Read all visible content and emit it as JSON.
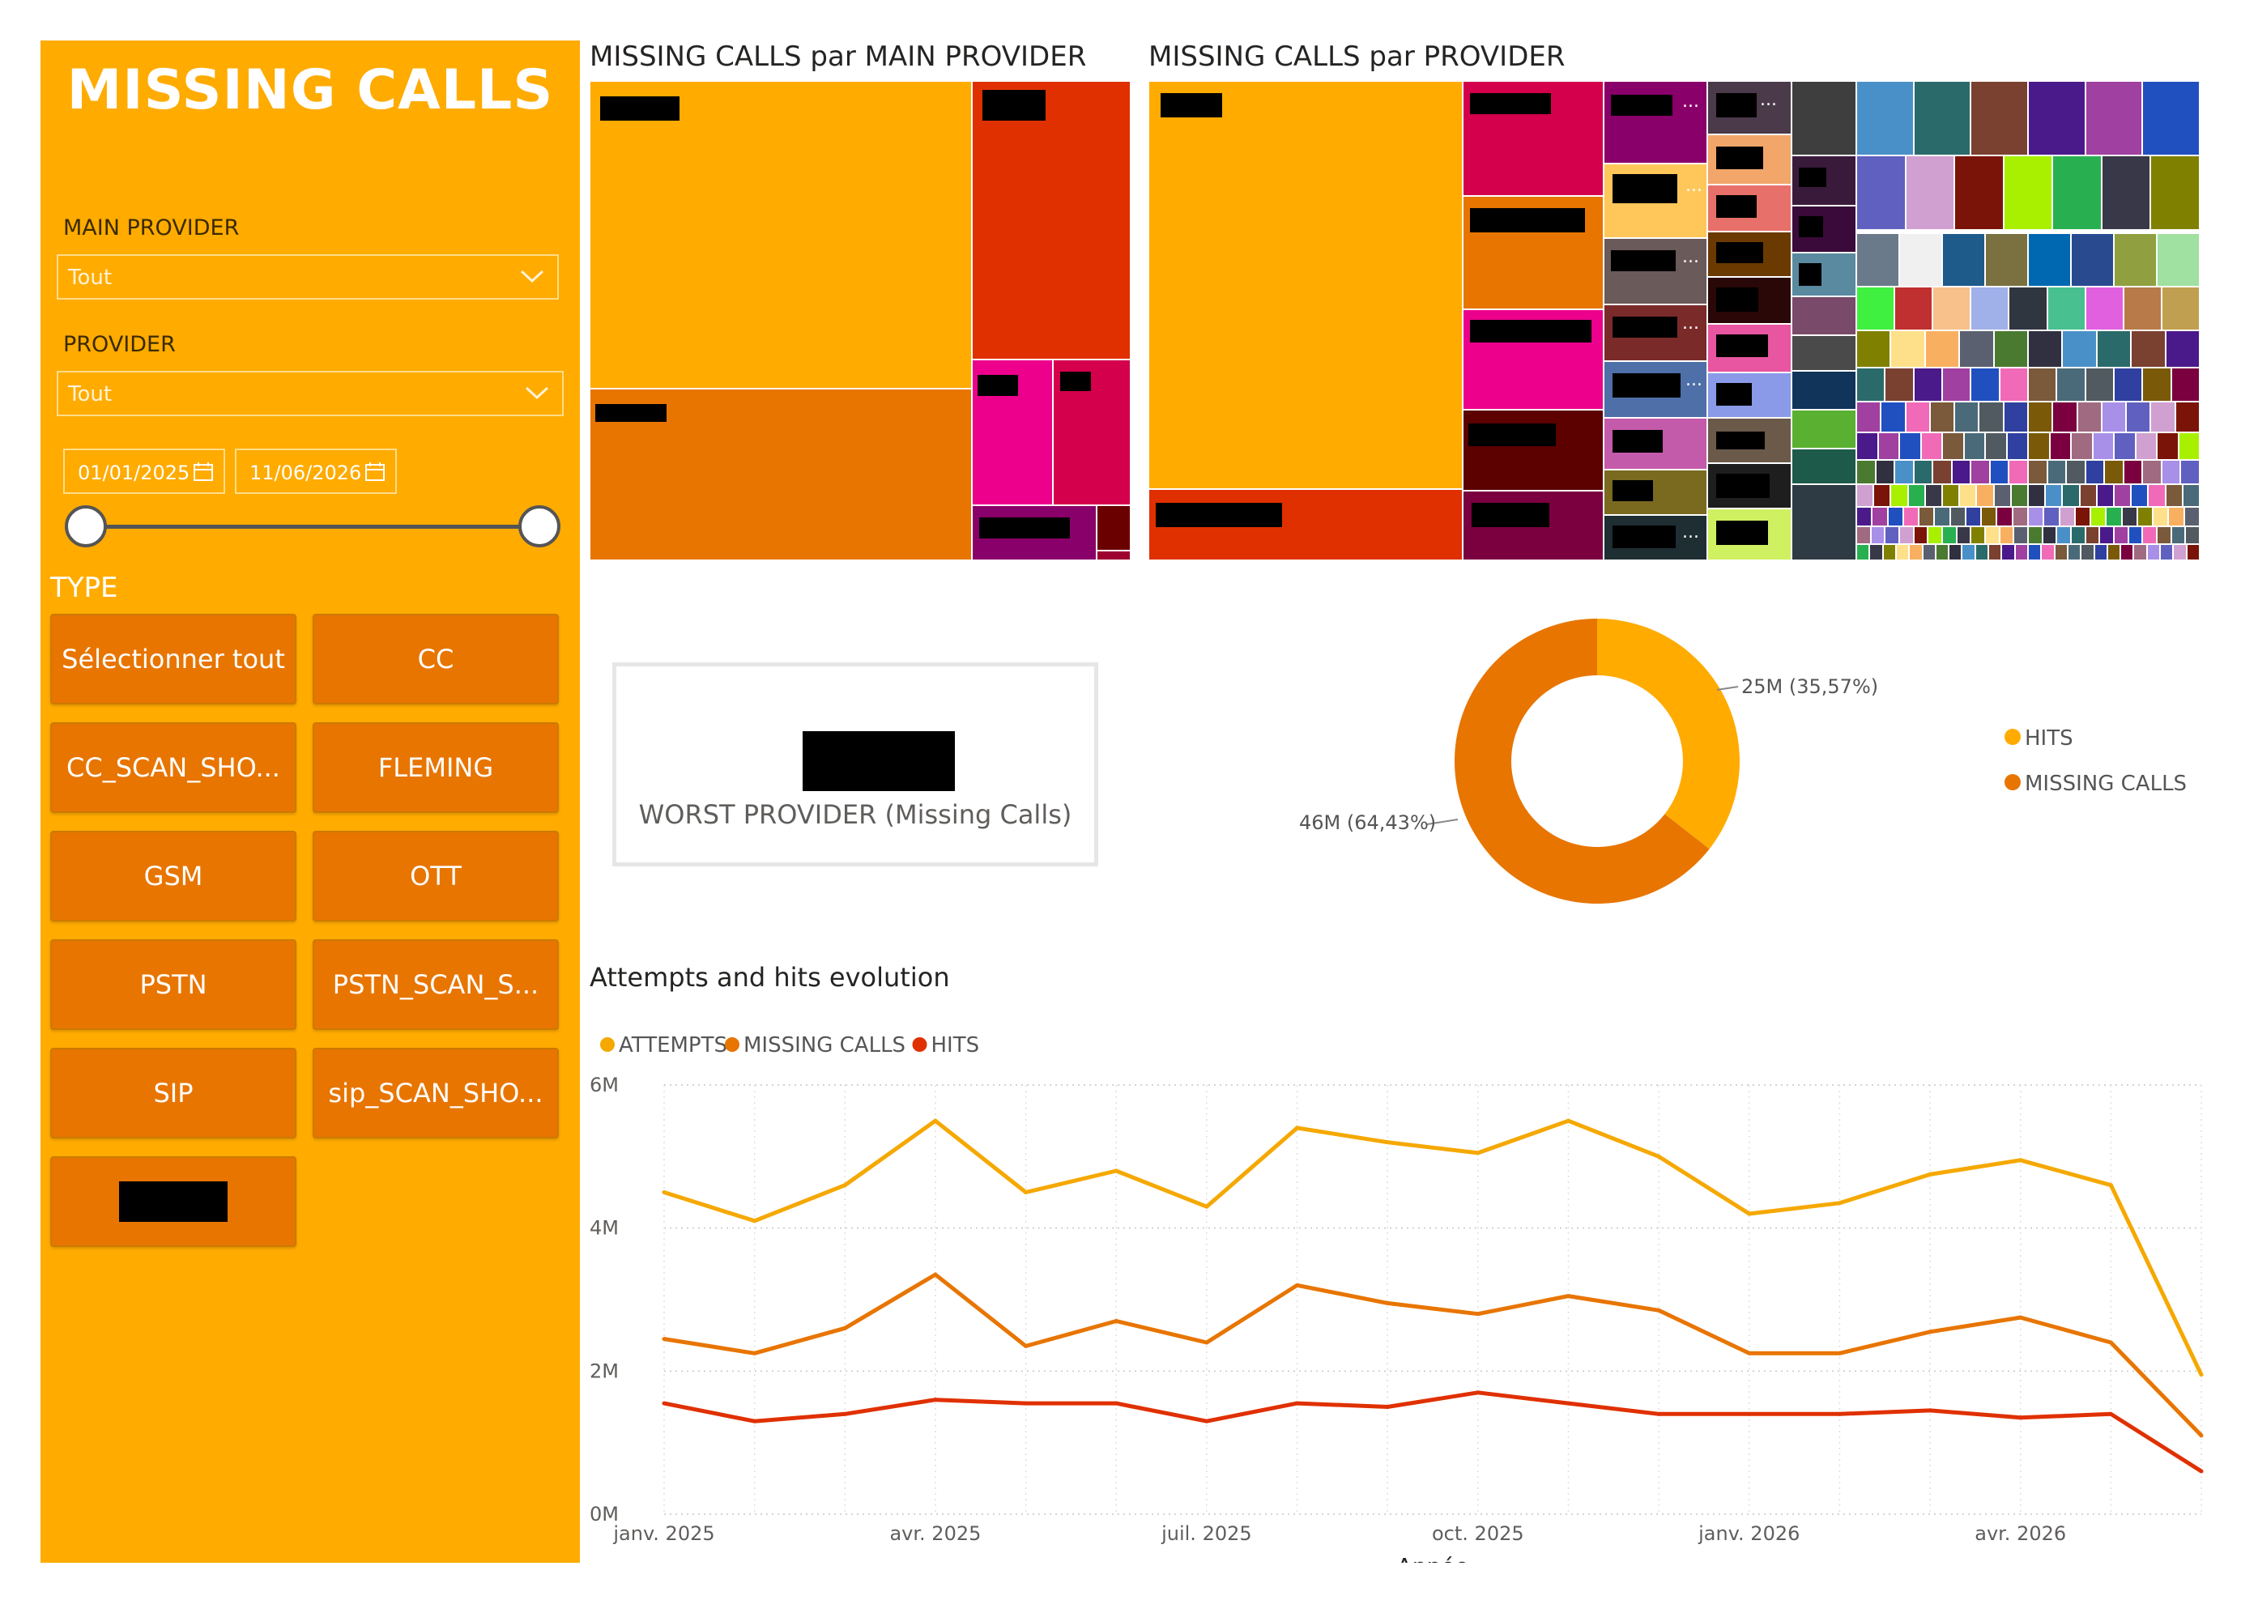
{
  "sidebar": {
    "title": "MISSING CALLS",
    "main_provider": {
      "label": "MAIN PROVIDER",
      "value": "Tout"
    },
    "provider": {
      "label": "PROVIDER",
      "value": "Tout"
    },
    "date_range": {
      "start": "01/01/2025",
      "end": "11/06/2026",
      "slider_start": 0.0,
      "slider_end": 1.0
    },
    "type_label": "TYPE",
    "type_buttons": [
      "Sélectionner tout",
      "CC",
      "CC_SCAN_SHO...",
      "FLEMING",
      "GSM",
      "OTT",
      "PSTN",
      "PSTN_SCAN_S...",
      "SIP",
      "sip_SCAN_SHO...",
      ""
    ]
  },
  "treemap_main": {
    "title": "MISSING CALLS par MAIN PROVIDER"
  },
  "treemap_provider": {
    "title": "MISSING CALLS par PROVIDER",
    "ellipsis": "..."
  },
  "card": {
    "label": "WORST PROVIDER (Missing Calls)"
  },
  "donut": {
    "series": [
      {
        "name": "HITS",
        "label": "25M (35,57%)",
        "value": 35.57,
        "color": "#FFAB00"
      },
      {
        "name": "MISSING CALLS",
        "label": "46M (64,43%)",
        "value": 64.43,
        "color": "#E87500"
      }
    ]
  },
  "line_chart": {
    "title": "Attempts and hits evolution"
  },
  "chart_data": {
    "type": "line",
    "title": "Attempts and hits evolution",
    "xlabel": "Année",
    "ylabel": "",
    "ylim": [
      0,
      6
    ],
    "y_ticks": [
      "0M",
      "2M",
      "4M",
      "6M"
    ],
    "x_ticks": [
      "janv. 2025",
      "avr. 2025",
      "juil. 2025",
      "oct. 2025",
      "janv. 2026",
      "avr. 2026"
    ],
    "x": [
      "2025-01",
      "2025-02",
      "2025-03",
      "2025-04",
      "2025-05",
      "2025-06",
      "2025-07",
      "2025-08",
      "2025-09",
      "2025-10",
      "2025-11",
      "2025-12",
      "2026-01",
      "2026-02",
      "2026-03",
      "2026-04",
      "2026-05",
      "2026-06"
    ],
    "series": [
      {
        "name": "ATTEMPTS",
        "color": "#F5A800",
        "values": [
          4.5,
          4.1,
          4.6,
          5.5,
          4.5,
          4.8,
          4.3,
          5.4,
          5.2,
          5.05,
          5.5,
          5.0,
          4.2,
          4.35,
          4.75,
          4.95,
          4.6,
          1.95
        ]
      },
      {
        "name": "MISSING CALLS",
        "color": "#E87500",
        "values": [
          2.45,
          2.25,
          2.6,
          3.35,
          2.35,
          2.7,
          2.4,
          3.2,
          2.95,
          2.8,
          3.05,
          2.85,
          2.25,
          2.25,
          2.55,
          2.75,
          2.4,
          1.1
        ]
      },
      {
        "name": "HITS",
        "color": "#E03000",
        "values": [
          1.55,
          1.3,
          1.4,
          1.6,
          1.55,
          1.55,
          1.3,
          1.55,
          1.5,
          1.7,
          1.55,
          1.4,
          1.4,
          1.4,
          1.45,
          1.35,
          1.4,
          0.6
        ]
      }
    ],
    "grid": true,
    "legend": "top-left"
  },
  "colors": {
    "sidebar_bg": "#FFAB00",
    "button_bg": "#E87500",
    "hits": "#FFAB00",
    "missing": "#E87500",
    "red": "#E03000"
  }
}
